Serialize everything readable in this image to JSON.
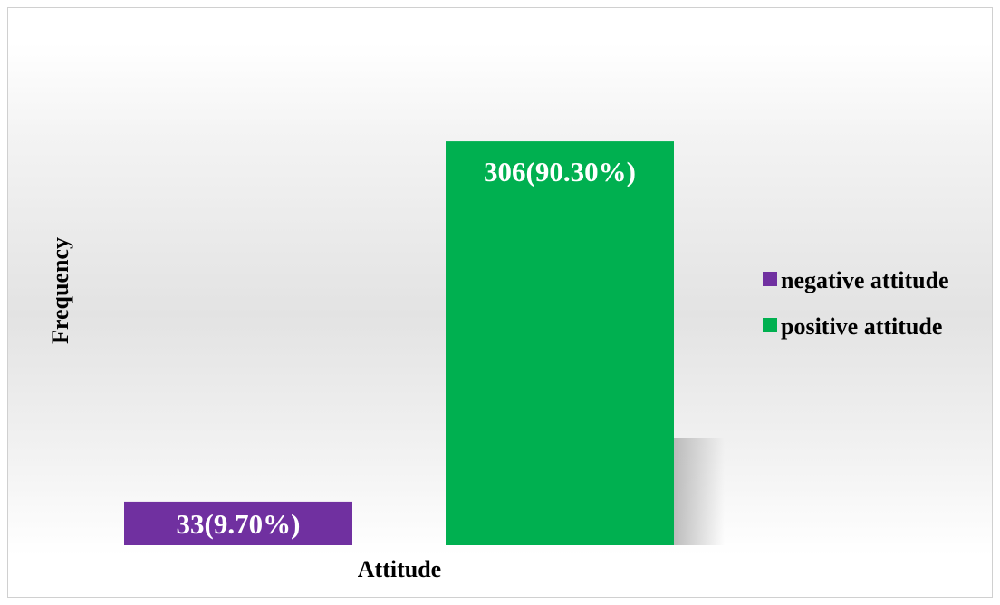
{
  "chart_data": {
    "type": "bar",
    "xlabel": "Attitude",
    "ylabel": "Frequency",
    "ylim": [
      0,
      339
    ],
    "grid": false,
    "legend_position": "right",
    "series": [
      {
        "name": "negative attitude",
        "value": 33,
        "percent": 9.7,
        "label": "33(9.70%)",
        "color": "#7030a0"
      },
      {
        "name": "positive attitude",
        "value": 306,
        "percent": 90.3,
        "label": "306(90.30%)",
        "color": "#00b050"
      }
    ]
  }
}
